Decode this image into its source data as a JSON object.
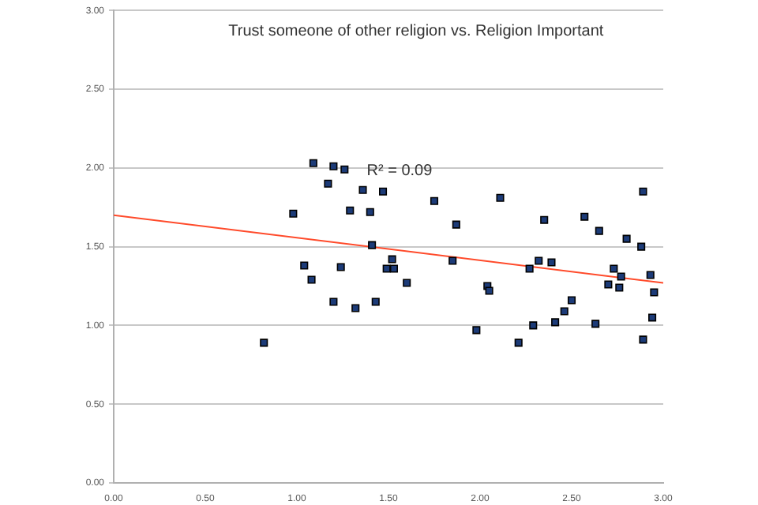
{
  "chart_data": {
    "type": "scatter",
    "title": "Trust someone of other religion vs. Religion Important",
    "annotations": [
      "R² = 0.09"
    ],
    "grid": "y",
    "legend": false,
    "xlim": [
      0,
      3
    ],
    "ylim": [
      0,
      3
    ],
    "xticks": [
      {
        "value": 0,
        "label": "0.00"
      },
      {
        "value": 0.5,
        "label": "0.50"
      },
      {
        "value": 1,
        "label": "1.00"
      },
      {
        "value": 1.5,
        "label": "1.50"
      },
      {
        "value": 2,
        "label": "2.00"
      },
      {
        "value": 2.5,
        "label": "2.50"
      },
      {
        "value": 3,
        "label": "3.00"
      }
    ],
    "yticks": [
      {
        "value": 0,
        "label": "0.00"
      },
      {
        "value": 0.5,
        "label": "0.50"
      },
      {
        "value": 1,
        "label": "1.00"
      },
      {
        "value": 1.5,
        "label": "1.50"
      },
      {
        "value": 2,
        "label": "2.00"
      },
      {
        "value": 2.5,
        "label": "2.50"
      },
      {
        "value": 3,
        "label": "3.00"
      }
    ],
    "series": [
      {
        "marker": "square",
        "color": "#1c3b78",
        "x": [
          0.82,
          0.98,
          1.09,
          1.04,
          1.08,
          1.17,
          1.2,
          1.26,
          1.2,
          1.24,
          1.29,
          1.32,
          1.36,
          1.4,
          1.41,
          1.43,
          1.47,
          1.49,
          1.52,
          1.53,
          1.6,
          1.75,
          1.87,
          1.85,
          1.98,
          2.04,
          2.05,
          2.11,
          2.21,
          2.29,
          2.27,
          2.32,
          2.35,
          2.39,
          2.41,
          2.46,
          2.5,
          2.57,
          2.63,
          2.65,
          2.73,
          2.7,
          2.76,
          2.77,
          2.8,
          2.88,
          2.89,
          2.89,
          2.93,
          2.95,
          2.94
        ],
        "values": [
          0.89,
          1.71,
          2.03,
          1.38,
          1.29,
          1.9,
          2.01,
          1.99,
          1.15,
          1.37,
          1.73,
          1.11,
          1.86,
          1.72,
          1.51,
          1.15,
          1.85,
          1.36,
          1.42,
          1.36,
          1.27,
          1.79,
          1.64,
          1.41,
          0.97,
          1.25,
          1.22,
          1.81,
          0.89,
          1.0,
          1.36,
          1.41,
          1.67,
          1.4,
          1.02,
          1.09,
          1.16,
          1.69,
          1.01,
          1.6,
          1.36,
          1.26,
          1.24,
          1.31,
          1.55,
          1.5,
          1.85,
          0.91,
          1.32,
          1.21,
          1.05
        ]
      },
      {
        "type": "line",
        "marker": "none",
        "color": "#ff4a2a",
        "x": [
          0,
          3
        ],
        "values": [
          1.7,
          1.27
        ]
      }
    ]
  }
}
